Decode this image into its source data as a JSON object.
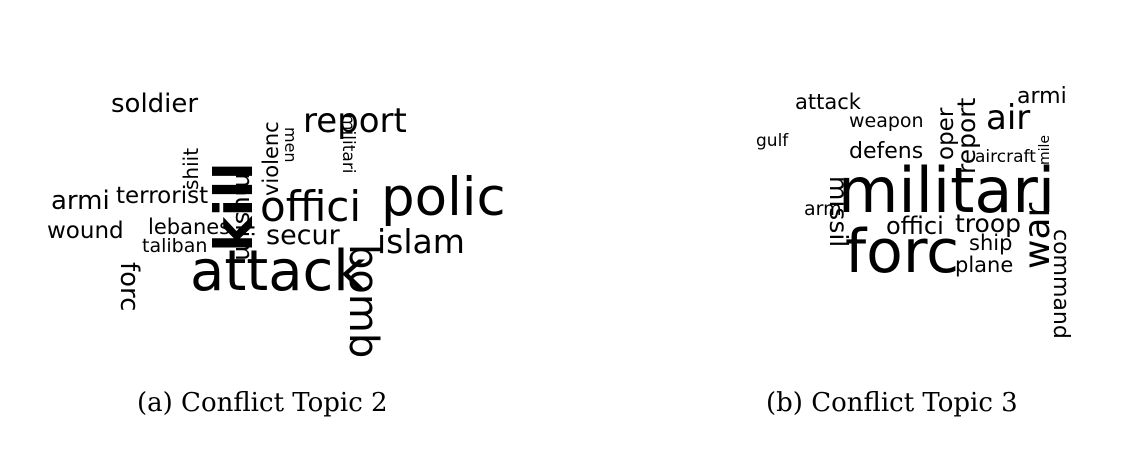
{
  "figures": [
    {
      "caption": "(a) Conflict Topic 2",
      "words": [
        "soldier",
        "muslim",
        "men",
        "militari",
        "report",
        "shiit",
        "violenc",
        "armi",
        "terrorist",
        "kill",
        "offici",
        "bomb",
        "polic",
        "wound",
        "forc",
        "lebanes",
        "taliban",
        "secur",
        "islam",
        "attack"
      ]
    },
    {
      "caption": "(b) Conflict Topic 3",
      "words": [
        "attack",
        "weapon",
        "missil",
        "oper",
        "report",
        "air",
        "armi",
        "gulf",
        "defens",
        "aircraft",
        "mile",
        "command",
        "militari",
        "arm",
        "offici",
        "troop",
        "war",
        "forc",
        "ship",
        "plane"
      ]
    }
  ]
}
